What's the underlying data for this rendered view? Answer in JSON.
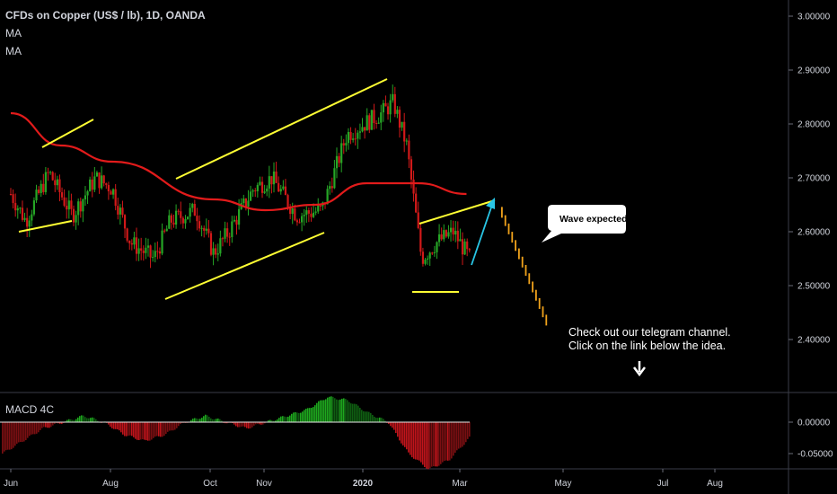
{
  "header": {
    "symbol_title": "CFDs on Copper (US$ / lb), 1D, OANDA",
    "study_1": "MA",
    "study_2": "MA"
  },
  "macd_pane": {
    "label": "MACD 4C"
  },
  "annotations": {
    "bubble": "Wave expected",
    "note_line_1": "Check out our telegram channel.",
    "note_line_2": "Click on the link below the idea."
  },
  "colors": {
    "background": "#000000",
    "candle_up": "#26a626",
    "candle_down": "#d11919",
    "moving_average": "#e21b1b",
    "trend_lines": "#ffff33",
    "arrow": "#29c6e6",
    "projection_bars": "#f0a21b",
    "macd_up": "#1ea81e",
    "macd_down": "#c0141b"
  },
  "chart_data": [
    {
      "type": "candlestick",
      "title": "CFDs on Copper (US$ / lb), 1D, OANDA",
      "x_tick_labels": [
        "Jun",
        "Aug",
        "Oct",
        "Nov",
        "2020",
        "Mar",
        "May",
        "Jul",
        "Aug"
      ],
      "y_tick_labels": [
        "3.00000",
        "2.90000",
        "2.80000",
        "2.70000",
        "2.60000",
        "2.50000",
        "2.40000"
      ],
      "ylim": [
        2.3,
        3.02
      ],
      "grid": false,
      "price_path": [
        [
          "Jun",
          2.67
        ],
        [
          "Jun 10",
          2.62
        ],
        [
          "Jun 24",
          2.71
        ],
        [
          "Jul 8",
          2.63
        ],
        [
          "Jul 22",
          2.7
        ],
        [
          "Aug 1",
          2.68
        ],
        [
          "Aug 12",
          2.58
        ],
        [
          "Aug 26",
          2.55
        ],
        [
          "Sep 5",
          2.62
        ],
        [
          "Sep 20",
          2.64
        ],
        [
          "Oct 1",
          2.56
        ],
        [
          "Oct 10",
          2.6
        ],
        [
          "Oct 25",
          2.68
        ],
        [
          "Nov 5",
          2.7
        ],
        [
          "Nov 20",
          2.63
        ],
        [
          "Dec 5",
          2.64
        ],
        [
          "Dec 20",
          2.78
        ],
        [
          "Jan 10",
          2.82
        ],
        [
          "Jan 17",
          2.84
        ],
        [
          "Jan 25",
          2.76
        ],
        [
          "Feb 3",
          2.55
        ],
        [
          "Feb 12",
          2.58
        ],
        [
          "Feb 22",
          2.6
        ],
        [
          "Mar 3",
          2.55
        ]
      ],
      "moving_average": [
        [
          "Jun",
          2.82
        ],
        [
          "Jul",
          2.76
        ],
        [
          "Aug",
          2.73
        ],
        [
          "Oct",
          2.66
        ],
        [
          "Nov",
          2.64
        ],
        [
          "Dec",
          2.65
        ],
        [
          "Jan",
          2.69
        ],
        [
          "Feb",
          2.69
        ],
        [
          "Mar",
          2.67
        ]
      ],
      "projection": {
        "from": 2.66,
        "to": 2.46,
        "bars": 14
      },
      "annotations": [
        "Wave expected",
        "Check out our telegram channel.",
        "Click on the link below the idea."
      ]
    },
    {
      "type": "bar",
      "title": "MACD 4C",
      "y_tick_labels": [
        "0.00000",
        "-0.05000"
      ],
      "ylim": [
        -0.08,
        0.05
      ],
      "series": [
        {
          "values": [
            -0.05,
            -0.03,
            -0.01,
            0.0,
            0.01,
            0.0,
            -0.02,
            -0.03,
            -0.02,
            0.0,
            0.01,
            0.0,
            -0.01,
            0.0,
            0.01,
            0.02,
            0.04,
            0.035,
            0.015,
            0.0,
            -0.05,
            -0.075,
            -0.06,
            -0.025
          ]
        }
      ]
    }
  ]
}
